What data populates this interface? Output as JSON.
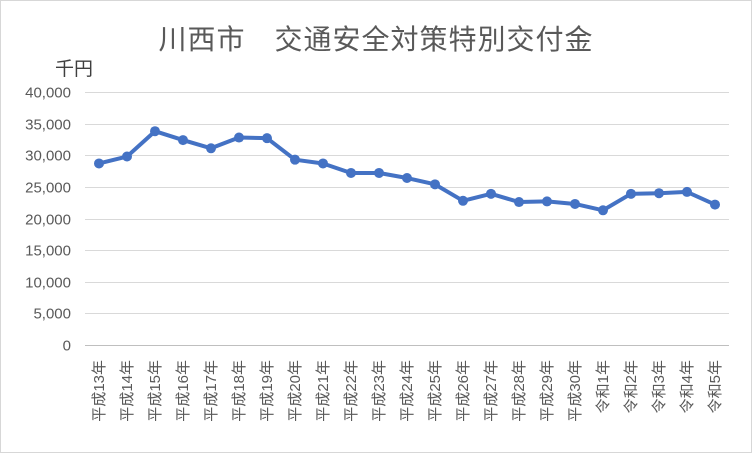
{
  "chart_data": {
    "type": "line",
    "title": "川西市　交通安全対策特別交付金",
    "unit_label": "千円",
    "categories": [
      "平成13年",
      "平成14年",
      "平成15年",
      "平成16年",
      "平成17年",
      "平成18年",
      "平成19年",
      "平成20年",
      "平成21年",
      "平成22年",
      "平成23年",
      "平成24年",
      "平成25年",
      "平成26年",
      "平成27年",
      "平成28年",
      "平成29年",
      "平成30年",
      "令和1年",
      "令和2年",
      "令和3年",
      "令和4年",
      "令和5年"
    ],
    "values": [
      28700,
      29800,
      33800,
      32400,
      31100,
      32800,
      32700,
      29300,
      28700,
      27200,
      27200,
      26400,
      25400,
      22800,
      23900,
      22600,
      22700,
      22300,
      21300,
      23900,
      24000,
      24200,
      22200
    ],
    "yticks": [
      0,
      5000,
      10000,
      15000,
      20000,
      25000,
      30000,
      35000,
      40000
    ],
    "ylim": [
      0,
      40000
    ],
    "grid": "horizontal",
    "legend": "none",
    "colors": {
      "line": "#4472C4",
      "marker": "#4472C4",
      "gridline": "#D9D9D9",
      "axis_line": "#BFBFBF",
      "text": "#595959",
      "title_text": "#595959"
    }
  }
}
